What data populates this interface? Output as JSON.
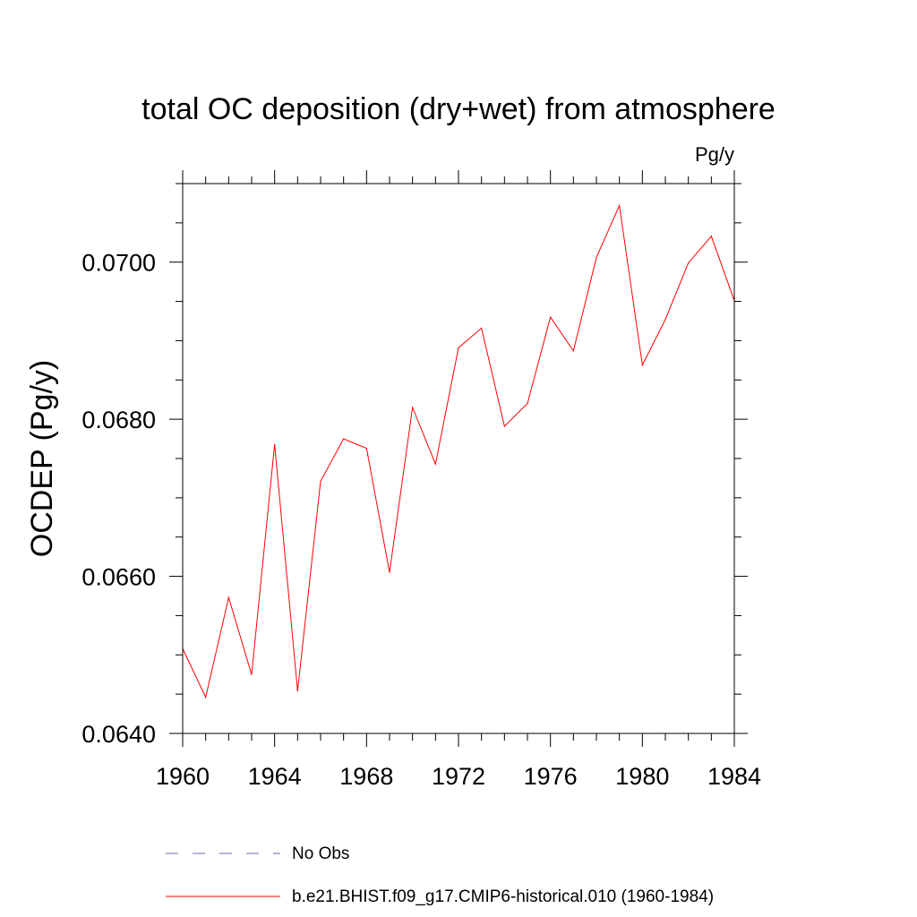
{
  "chart_data": {
    "type": "line",
    "title": "total OC deposition (dry+wet) from atmosphere",
    "units_label": "Pg/y",
    "ylabel": "OCDEP  (Pg/y)",
    "xlabel": "",
    "xlim": [
      1960,
      1984
    ],
    "ylim": [
      0.064,
      0.071
    ],
    "x_ticks": [
      1960,
      1964,
      1968,
      1972,
      1976,
      1980,
      1984
    ],
    "x_tick_labels": [
      "1960",
      "1964",
      "1968",
      "1972",
      "1976",
      "1980",
      "1984"
    ],
    "y_ticks": [
      0.064,
      0.066,
      0.068,
      0.07
    ],
    "y_tick_labels": [
      "0.0640",
      "0.0660",
      "0.0680",
      "0.0700"
    ],
    "grid": false,
    "legend_position": "bottom",
    "series": [
      {
        "name": "b.e21.BHIST.f09_g17.CMIP6-historical.010 (1960-1984)",
        "color": "#ff0000",
        "style": "solid",
        "x": [
          1960,
          1961,
          1962,
          1963,
          1964,
          1965,
          1966,
          1967,
          1968,
          1969,
          1970,
          1971,
          1972,
          1973,
          1974,
          1975,
          1976,
          1977,
          1978,
          1979,
          1980,
          1981,
          1982,
          1983,
          1984
        ],
        "values": [
          0.06508,
          0.06446,
          0.06573,
          0.06475,
          0.06768,
          0.06454,
          0.06721,
          0.06775,
          0.06763,
          0.06605,
          0.06815,
          0.06743,
          0.06891,
          0.06916,
          0.06791,
          0.0682,
          0.0693,
          0.06887,
          0.07006,
          0.07072,
          0.06869,
          0.06927,
          0.06999,
          0.07033,
          0.06951
        ]
      }
    ],
    "legend": [
      {
        "label": "No Obs",
        "color": "#6a6aa8",
        "style": "dashed"
      },
      {
        "label": "b.e21.BHIST.f09_g17.CMIP6-historical.010 (1960-1984)",
        "color": "#ff0000",
        "style": "solid"
      }
    ]
  }
}
